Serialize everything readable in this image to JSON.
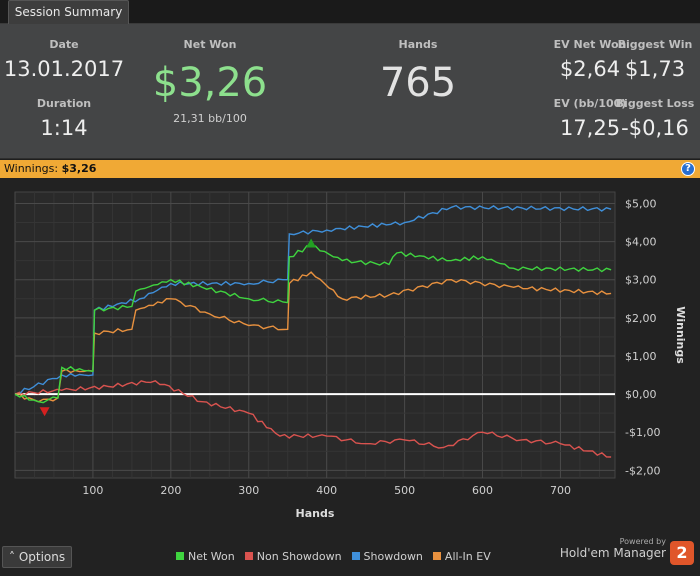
{
  "tab": {
    "label": "Session Summary"
  },
  "summary": {
    "date_label": "Date",
    "date": "13.01.2017",
    "duration_label": "Duration",
    "duration": "1:14",
    "net_won_label": "Net Won",
    "net_won": "$3,26",
    "bb100": "21,31 bb/100",
    "hands_label": "Hands",
    "hands": "765",
    "ev_net_won_label": "EV Net Won",
    "ev_net_won": "$2,64",
    "biggest_win_label": "Biggest Win",
    "biggest_win": "$1,73",
    "ev_bb100_label": "EV (bb/100)",
    "ev_bb100": "17,25",
    "biggest_loss_label": "Biggest Loss",
    "biggest_loss": "-$0,16"
  },
  "winnings_bar": {
    "label": "Winnings:",
    "value": "$3,26",
    "help": "?"
  },
  "options": {
    "label": "Options",
    "icon": "chevron-up-icon"
  },
  "brand": {
    "powered_by": "Powered by",
    "name": "Hold'em Manager",
    "logo": "2"
  },
  "colors": {
    "net_won": "#3fd43f",
    "non_showdown": "#d9534f",
    "showdown": "#3f8fd9",
    "all_in_ev": "#e8913f",
    "net_won_value": "#8de08d"
  },
  "chart_data": {
    "type": "line",
    "xlabel": "Hands",
    "ylabel": "Winnings",
    "xlim": [
      0,
      770
    ],
    "ylim": [
      -2.2,
      5.3
    ],
    "x_ticks": [
      100,
      200,
      300,
      400,
      500,
      600,
      700
    ],
    "y_ticks": [
      {
        "v": 5,
        "label": "$5,00"
      },
      {
        "v": 4,
        "label": "$4,00"
      },
      {
        "v": 3,
        "label": "$3,00"
      },
      {
        "v": 2,
        "label": "$2,00"
      },
      {
        "v": 1,
        "label": "$1,00"
      },
      {
        "v": 0,
        "label": "$0,00"
      },
      {
        "v": -1,
        "label": "-$1,00"
      },
      {
        "v": -2,
        "label": "-$2,00"
      }
    ],
    "series": [
      {
        "name": "Net Won",
        "color": "#3fd43f",
        "points": [
          [
            0,
            0
          ],
          [
            30,
            -0.2
          ],
          [
            55,
            -0.1
          ],
          [
            60,
            0.7
          ],
          [
            100,
            0.6
          ],
          [
            102,
            2.2
          ],
          [
            150,
            2.3
          ],
          [
            155,
            2.7
          ],
          [
            200,
            3.0
          ],
          [
            240,
            2.8
          ],
          [
            300,
            2.5
          ],
          [
            350,
            2.4
          ],
          [
            352,
            3.6
          ],
          [
            380,
            3.9
          ],
          [
            420,
            3.5
          ],
          [
            480,
            3.4
          ],
          [
            490,
            3.7
          ],
          [
            560,
            3.5
          ],
          [
            600,
            3.6
          ],
          [
            640,
            3.3
          ],
          [
            765,
            3.26
          ]
        ]
      },
      {
        "name": "Non Showdown",
        "color": "#d9534f",
        "points": [
          [
            0,
            0
          ],
          [
            60,
            0.1
          ],
          [
            120,
            0.2
          ],
          [
            180,
            0.35
          ],
          [
            240,
            -0.2
          ],
          [
            300,
            -0.5
          ],
          [
            340,
            -1.1
          ],
          [
            400,
            -1.1
          ],
          [
            450,
            -1.3
          ],
          [
            500,
            -1.2
          ],
          [
            550,
            -1.4
          ],
          [
            600,
            -1.0
          ],
          [
            650,
            -1.2
          ],
          [
            700,
            -1.3
          ],
          [
            765,
            -1.65
          ]
        ]
      },
      {
        "name": "Showdown",
        "color": "#3f8fd9",
        "points": [
          [
            0,
            0
          ],
          [
            60,
            0.5
          ],
          [
            100,
            0.5
          ],
          [
            102,
            2.2
          ],
          [
            160,
            2.5
          ],
          [
            200,
            2.9
          ],
          [
            300,
            2.9
          ],
          [
            350,
            3.0
          ],
          [
            352,
            4.2
          ],
          [
            400,
            4.3
          ],
          [
            500,
            4.5
          ],
          [
            560,
            4.9
          ],
          [
            765,
            4.85
          ]
        ]
      },
      {
        "name": "All-In EV",
        "color": "#e8913f",
        "points": [
          [
            0,
            0
          ],
          [
            30,
            -0.2
          ],
          [
            55,
            -0.1
          ],
          [
            60,
            0.6
          ],
          [
            100,
            0.6
          ],
          [
            102,
            1.6
          ],
          [
            150,
            1.7
          ],
          [
            155,
            2.2
          ],
          [
            200,
            2.5
          ],
          [
            250,
            2.1
          ],
          [
            300,
            1.8
          ],
          [
            350,
            1.7
          ],
          [
            352,
            2.9
          ],
          [
            380,
            3.2
          ],
          [
            420,
            2.5
          ],
          [
            480,
            2.6
          ],
          [
            560,
            3.0
          ],
          [
            640,
            2.8
          ],
          [
            765,
            2.64
          ]
        ]
      }
    ],
    "markers": [
      {
        "type": "max",
        "x": 380,
        "y": 3.95,
        "color": "#22a022"
      },
      {
        "type": "min",
        "x": 38,
        "y": -0.45,
        "color": "#d42020"
      }
    ],
    "legend_position": "bottom"
  }
}
